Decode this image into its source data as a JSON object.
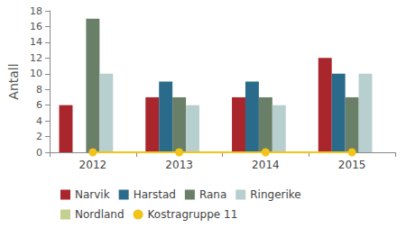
{
  "chart_data": {
    "type": "bar",
    "y_label": "Antall",
    "categories": [
      "2012",
      "2013",
      "2014",
      "2015"
    ],
    "series": [
      {
        "name": "Narvik",
        "color": "#a8262c",
        "values": [
          6,
          7,
          7,
          12
        ]
      },
      {
        "name": "Harstad",
        "color": "#2a6b8c",
        "values": [
          null,
          9,
          9,
          10
        ]
      },
      {
        "name": "Rana",
        "color": "#6a7f67",
        "values": [
          17,
          7,
          7,
          7
        ]
      },
      {
        "name": "Ringerike",
        "color": "#b8cfcf",
        "values": [
          10,
          6,
          6,
          10
        ]
      },
      {
        "name": "Nordland",
        "color": "#c3d08f",
        "values": [
          null,
          null,
          null,
          null
        ]
      },
      {
        "name": "Kostragruppe 11",
        "color": "#f0c419",
        "type": "line",
        "marker": "circle",
        "values": [
          0,
          0,
          0,
          0
        ]
      }
    ],
    "ylim": [
      0,
      18
    ],
    "yticks": [
      0,
      2,
      4,
      6,
      8,
      10,
      12,
      14,
      16,
      18
    ],
    "grid": false,
    "legend": "bottom"
  }
}
